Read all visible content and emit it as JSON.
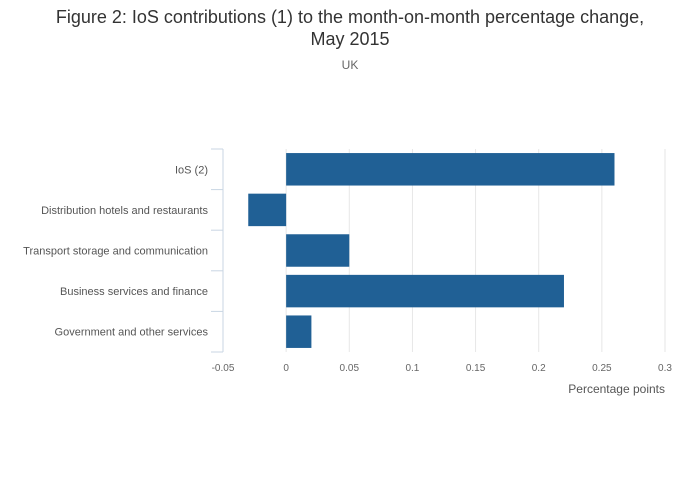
{
  "chart_data": {
    "type": "bar",
    "orientation": "horizontal",
    "title_line1": "Figure 2: IoS contributions (1) to the month-on-month percentage change,",
    "title_line2": "May 2015",
    "subtitle": "UK",
    "xlabel": "Percentage points",
    "ylabel": "",
    "xlim": [
      -0.05,
      0.3
    ],
    "xticks": [
      -0.05,
      0,
      0.05,
      0.1,
      0.15,
      0.2,
      0.25,
      0.3
    ],
    "xtick_labels": [
      "-0.05",
      "0",
      "0.05",
      "0.1",
      "0.15",
      "0.2",
      "0.25",
      "0.3"
    ],
    "categories": [
      "IoS (2)",
      "Distribution hotels and restaurants",
      "Transport storage and communication",
      "Business services and finance",
      "Government and other services"
    ],
    "values": [
      0.26,
      -0.03,
      0.05,
      0.22,
      0.02
    ],
    "bar_color": "#206095",
    "grid": true,
    "legend": "none"
  }
}
